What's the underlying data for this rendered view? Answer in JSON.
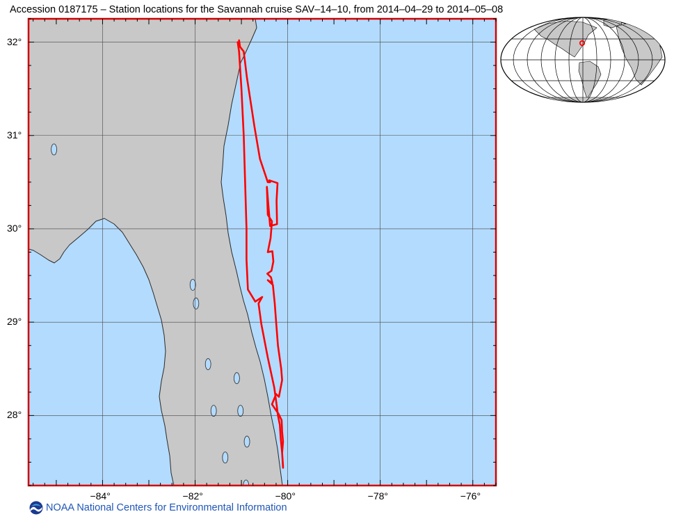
{
  "title": "Accession 0187175 – Station locations for the Savannah cruise SAV–14–10, from 2014–04–29 to 2014–05–08",
  "map": {
    "extent": {
      "lon_min": -85.6,
      "lon_max": -75.5,
      "lat_min": 27.25,
      "lat_max": 32.25
    },
    "lat_ticks": [
      {
        "value": 32,
        "label": "32°"
      },
      {
        "value": 31,
        "label": "31°"
      },
      {
        "value": 30,
        "label": "30°"
      },
      {
        "value": 29,
        "label": "29°"
      },
      {
        "value": 28,
        "label": "28°"
      }
    ],
    "lon_ticks": [
      {
        "value": -84,
        "label": "−84°"
      },
      {
        "value": -82,
        "label": "−82°"
      },
      {
        "value": -80,
        "label": "−80°"
      },
      {
        "value": -78,
        "label": "−78°"
      },
      {
        "value": -76,
        "label": "−76°"
      }
    ],
    "colors": {
      "ocean": "#b3dbfd",
      "land": "#c8c8c8",
      "coast": "#2a2a2a",
      "frame": "#d40000",
      "track": "#ff0000",
      "grid": "#444444"
    },
    "cruise_track": [
      [
        -81.05,
        32.02
      ],
      [
        -81.03,
        31.95
      ],
      [
        -80.95,
        31.9
      ],
      [
        -80.88,
        31.62
      ],
      [
        -80.72,
        31.1
      ],
      [
        -80.6,
        30.75
      ],
      [
        -80.43,
        30.5
      ],
      [
        -80.38,
        30.5
      ],
      [
        -80.4,
        30.52
      ],
      [
        -80.22,
        30.49
      ],
      [
        -80.24,
        30.3
      ],
      [
        -80.23,
        30.05
      ],
      [
        -80.38,
        30.03
      ],
      [
        -80.45,
        30.45
      ],
      [
        -80.43,
        30.15
      ],
      [
        -80.34,
        30.08
      ],
      [
        -80.37,
        29.9
      ],
      [
        -80.43,
        29.75
      ],
      [
        -80.33,
        29.76
      ],
      [
        -80.31,
        29.65
      ],
      [
        -80.35,
        29.55
      ],
      [
        -80.44,
        29.52
      ],
      [
        -80.36,
        29.48
      ],
      [
        -80.33,
        29.42
      ],
      [
        -80.43,
        29.45
      ],
      [
        -80.32,
        29.4
      ],
      [
        -80.28,
        29.2
      ],
      [
        -80.25,
        29.0
      ],
      [
        -80.21,
        28.75
      ],
      [
        -80.14,
        28.5
      ],
      [
        -80.12,
        28.38
      ],
      [
        -80.19,
        28.2
      ],
      [
        -80.25,
        28.23
      ],
      [
        -80.34,
        28.12
      ],
      [
        -80.2,
        28.02
      ],
      [
        -80.13,
        27.95
      ],
      [
        -80.12,
        27.83
      ],
      [
        -80.1,
        27.72
      ],
      [
        -80.12,
        27.6
      ],
      [
        -80.1,
        27.46
      ],
      [
        -80.1,
        27.44
      ],
      [
        -80.12,
        27.6
      ],
      [
        -80.15,
        27.75
      ],
      [
        -80.17,
        27.9
      ],
      [
        -80.21,
        28.0
      ],
      [
        -80.24,
        28.12
      ],
      [
        -80.29,
        28.3
      ],
      [
        -80.43,
        28.62
      ],
      [
        -80.57,
        28.98
      ],
      [
        -80.63,
        29.2
      ],
      [
        -80.55,
        29.27
      ],
      [
        -80.7,
        29.22
      ],
      [
        -80.86,
        29.35
      ],
      [
        -80.89,
        29.67
      ],
      [
        -80.89,
        30.0
      ],
      [
        -80.92,
        30.5
      ],
      [
        -80.95,
        31.0
      ],
      [
        -81.0,
        31.5
      ],
      [
        -81.05,
        31.9
      ],
      [
        -81.08,
        32.0
      ]
    ],
    "lakes": [
      [
        -85.05,
        30.85
      ],
      [
        -82.05,
        29.4
      ],
      [
        -81.98,
        29.2
      ],
      [
        -81.72,
        28.55
      ],
      [
        -81.1,
        28.4
      ],
      [
        -81.6,
        28.05
      ],
      [
        -81.02,
        28.05
      ],
      [
        -80.88,
        27.72
      ],
      [
        -81.35,
        27.55
      ],
      [
        -80.9,
        27.25
      ]
    ]
  },
  "globe": {
    "colors": {
      "ocean": "#ffffff",
      "land": "#c8c8c8",
      "outline": "#000000",
      "marker": "#ff0000"
    }
  },
  "credit": {
    "text": "NOAA National Centers for Environmental Information",
    "logo_icon": "noaa-logo-icon"
  }
}
